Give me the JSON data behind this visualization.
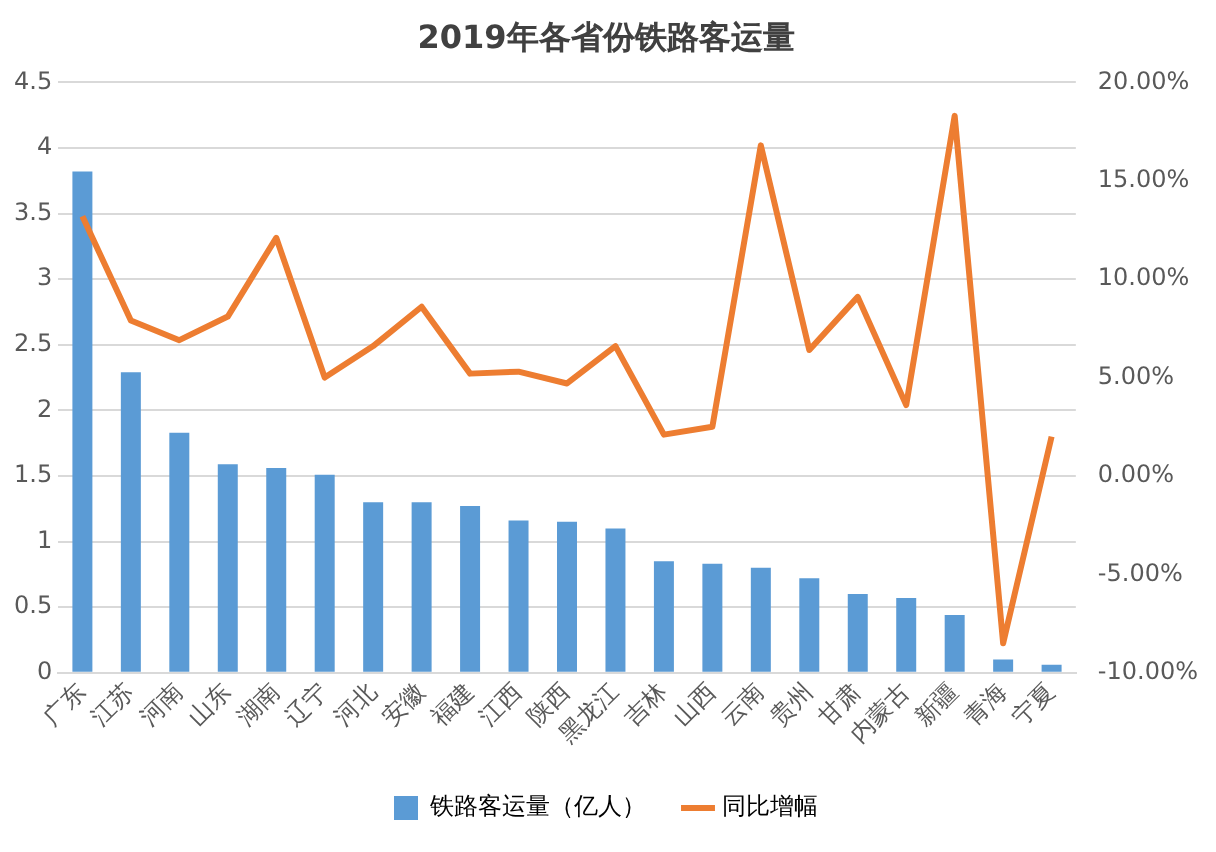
{
  "chart_data": {
    "type": "bar",
    "title": "2019年各省份铁路客运量",
    "categories": [
      "广东",
      "江苏",
      "河南",
      "山东",
      "湖南",
      "辽宁",
      "河北",
      "安徽",
      "福建",
      "江西",
      "陕西",
      "黑龙江",
      "吉林",
      "山西",
      "云南",
      "贵州",
      "甘肃",
      "内蒙古",
      "新疆",
      "青海",
      "宁夏"
    ],
    "series": [
      {
        "name": "铁路客运量（亿人）",
        "color": "#5b9bd5",
        "values": [
          3.82,
          2.29,
          1.83,
          1.59,
          1.56,
          1.51,
          1.3,
          1.3,
          1.27,
          1.16,
          1.15,
          1.1,
          0.85,
          0.83,
          0.8,
          0.72,
          0.6,
          0.57,
          0.44,
          0.1,
          0.06
        ]
      },
      {
        "name": "同比增幅",
        "type": "line",
        "axis": "y2",
        "color": "#ed7d31",
        "values": [
          13.2,
          7.9,
          6.9,
          8.1,
          12.1,
          5.0,
          6.6,
          8.6,
          5.2,
          5.3,
          4.7,
          6.6,
          2.1,
          2.5,
          16.8,
          6.4,
          9.1,
          3.6,
          18.3,
          -8.5,
          2.0
        ]
      }
    ],
    "ylim": [
      0,
      4.5
    ],
    "yticks": [
      0,
      0.5,
      1,
      1.5,
      2,
      2.5,
      3,
      3.5,
      4,
      4.5
    ],
    "y2lim": [
      -10,
      20
    ],
    "y2ticks": [
      {
        "value": -10,
        "label": "-10.00%"
      },
      {
        "value": -5,
        "label": "-5.00%"
      },
      {
        "value": 0,
        "label": "0.00%"
      },
      {
        "value": 5,
        "label": "5.00%"
      },
      {
        "value": 10,
        "label": "10.00%"
      },
      {
        "value": 15,
        "label": "15.00%"
      },
      {
        "value": 20,
        "label": "20.00%"
      }
    ],
    "grid": "y",
    "legend": "bottom",
    "marker": "none"
  }
}
